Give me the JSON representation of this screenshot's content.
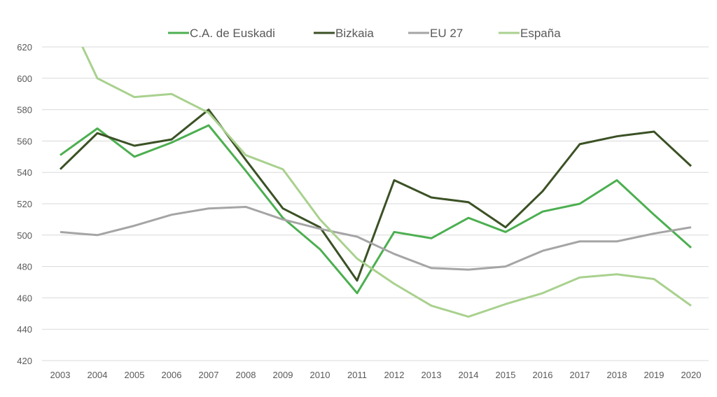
{
  "chart_data": {
    "type": "line",
    "title": "",
    "xlabel": "",
    "ylabel": "",
    "ylim": [
      420,
      620
    ],
    "yticks": [
      420,
      440,
      460,
      480,
      500,
      520,
      540,
      560,
      580,
      600,
      620
    ],
    "grid": true,
    "legend_position": "top",
    "x": [
      "2003",
      "2004",
      "2005",
      "2006",
      "2007",
      "2008",
      "2009",
      "2010",
      "2011",
      "2012",
      "2013",
      "2014",
      "2015",
      "2016",
      "2017",
      "2018",
      "2019",
      "2020"
    ],
    "series": [
      {
        "name": "C.A. de Euskadi",
        "color": "#4caf50",
        "values": [
          551,
          568,
          550,
          559,
          570,
          541,
          511,
          491,
          463,
          502,
          498,
          511,
          502,
          515,
          520,
          535,
          513,
          492
        ]
      },
      {
        "name": "Bizkaia",
        "color": "#3b5125",
        "values": [
          542,
          565,
          557,
          561,
          580,
          548,
          517,
          505,
          471,
          535,
          524,
          521,
          505,
          528,
          558,
          563,
          566,
          544
        ]
      },
      {
        "name": "EU 27",
        "color": "#a5a5a5",
        "values": [
          502,
          500,
          506,
          513,
          517,
          518,
          510,
          504,
          499,
          488,
          479,
          478,
          480,
          490,
          496,
          496,
          501,
          505
        ]
      },
      {
        "name": "España",
        "color": "#a9d18e",
        "values": [
          650,
          600,
          588,
          590,
          578,
          551,
          542,
          510,
          485,
          469,
          455,
          448,
          456,
          463,
          473,
          475,
          472,
          455
        ]
      }
    ]
  }
}
